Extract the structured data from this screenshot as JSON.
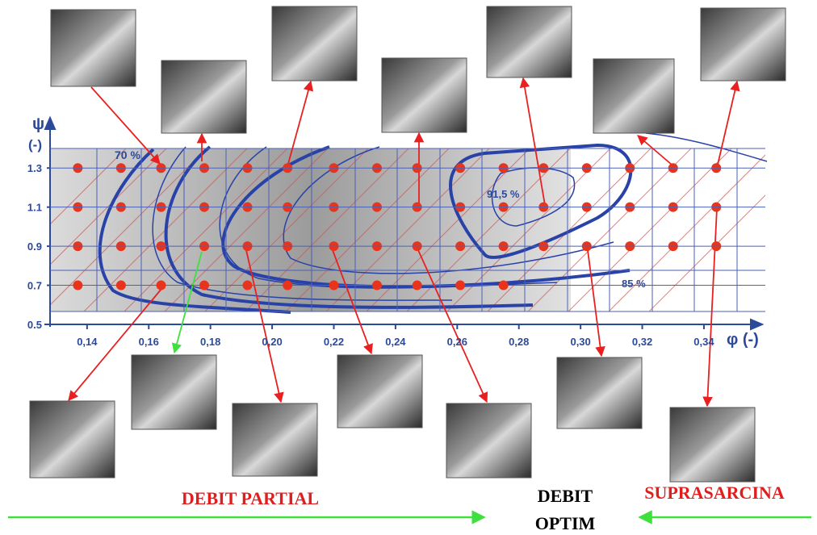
{
  "chart_data": {
    "type": "scatter",
    "y_label": "ψ",
    "y_unit": "(-)",
    "x_label": "φ (-)",
    "xlim": [
      0.128,
      0.3565
    ],
    "ylim": [
      0.5,
      1.4
    ],
    "xticks": [
      {
        "value": 0.14,
        "label": "0,14"
      },
      {
        "value": 0.16,
        "label": "0,16"
      },
      {
        "value": 0.18,
        "label": "0,18"
      },
      {
        "value": 0.2,
        "label": "0,20"
      },
      {
        "value": 0.22,
        "label": "0,22"
      },
      {
        "value": 0.24,
        "label": "0,24"
      },
      {
        "value": 0.26,
        "label": "0,26"
      },
      {
        "value": 0.28,
        "label": "0,28"
      },
      {
        "value": 0.3,
        "label": "0,30"
      },
      {
        "value": 0.32,
        "label": "0,32"
      },
      {
        "value": 0.34,
        "label": "0,34"
      }
    ],
    "yticks": [
      0.5,
      0.7,
      0.9,
      1.1,
      1.3
    ],
    "grid": true,
    "series": [
      {
        "color": "#e8341c",
        "x": [
          0.137,
          0.151,
          0.164,
          0.178,
          0.192,
          0.205,
          0.22,
          0.234,
          0.247,
          0.261,
          0.275,
          0.288,
          0.302,
          0.316,
          0.33,
          0.344,
          0.137,
          0.151,
          0.164,
          0.178,
          0.192,
          0.205,
          0.22,
          0.234,
          0.247,
          0.261,
          0.275,
          0.288,
          0.302,
          0.316,
          0.33,
          0.344,
          0.137,
          0.151,
          0.164,
          0.178,
          0.192,
          0.205,
          0.22,
          0.234,
          0.247,
          0.261,
          0.275,
          0.288,
          0.302,
          0.316,
          0.33,
          0.344,
          0.137,
          0.151,
          0.164,
          0.178,
          0.192,
          0.205,
          0.22,
          0.234,
          0.247,
          0.261,
          0.275
        ],
        "y": [
          1.3,
          1.3,
          1.3,
          1.3,
          1.3,
          1.3,
          1.3,
          1.3,
          1.3,
          1.3,
          1.3,
          1.3,
          1.3,
          1.3,
          1.3,
          1.3,
          1.1,
          1.1,
          1.1,
          1.1,
          1.1,
          1.1,
          1.1,
          1.1,
          1.1,
          1.1,
          1.1,
          1.1,
          1.1,
          1.1,
          1.1,
          1.1,
          0.9,
          0.9,
          0.9,
          0.9,
          0.9,
          0.9,
          0.9,
          0.9,
          0.9,
          0.9,
          0.9,
          0.9,
          0.9,
          0.9,
          0.9,
          0.9,
          0.7,
          0.7,
          0.7,
          0.7,
          0.7,
          0.7,
          0.7,
          0.7,
          0.7,
          0.7,
          0.7
        ]
      }
    ],
    "annotations": [
      "70 %",
      "91,5 %",
      "85 %"
    ]
  },
  "footer": {
    "left": "DEBIT PARTIAL",
    "middle": [
      "DEBIT",
      "OPTIM"
    ],
    "right": "SUPRASARCINA"
  }
}
